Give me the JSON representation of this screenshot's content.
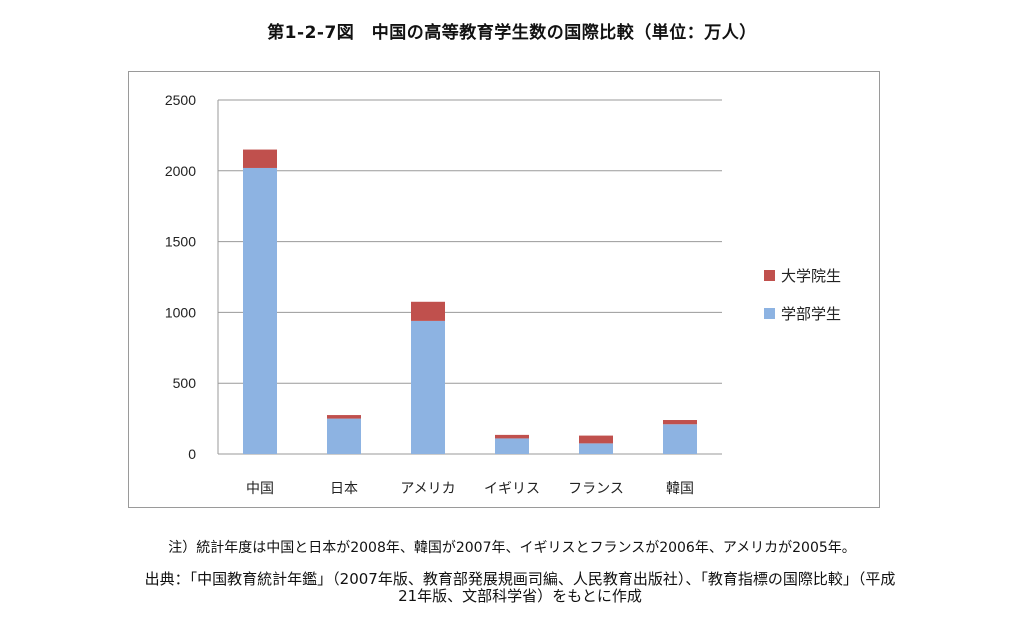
{
  "title": "第1-2-7図　中国の高等教育学生数の国際比較（単位：万人）",
  "note": "注）統計年度は中国と日本が2008年、韓国が2007年、イギリスとフランスが2006年、アメリカが2005年。",
  "source_line1": "出典：「中国教育統計年鑑」（2007年版、教育部発展規画司編、人民教育出版社）、「教育指標の国際比較」（平成",
  "source_line2": "21年版、文部科学省）をもとに作成",
  "chart_data": {
    "type": "bar",
    "stacked": true,
    "categories": [
      "中国",
      "日本",
      "アメリカ",
      "イギリス",
      "フランス",
      "韓国"
    ],
    "series": [
      {
        "name": "学部学生",
        "color": "#8db3e2",
        "values": [
          2020,
          250,
          940,
          110,
          75,
          210
        ]
      },
      {
        "name": "大学院生",
        "color": "#c0504d",
        "values": [
          130,
          25,
          135,
          25,
          55,
          30
        ]
      }
    ],
    "ylim": [
      0,
      2500
    ],
    "yticks": [
      0,
      500,
      1000,
      1500,
      2000,
      2500
    ],
    "grid": true,
    "legend_position": "right"
  }
}
